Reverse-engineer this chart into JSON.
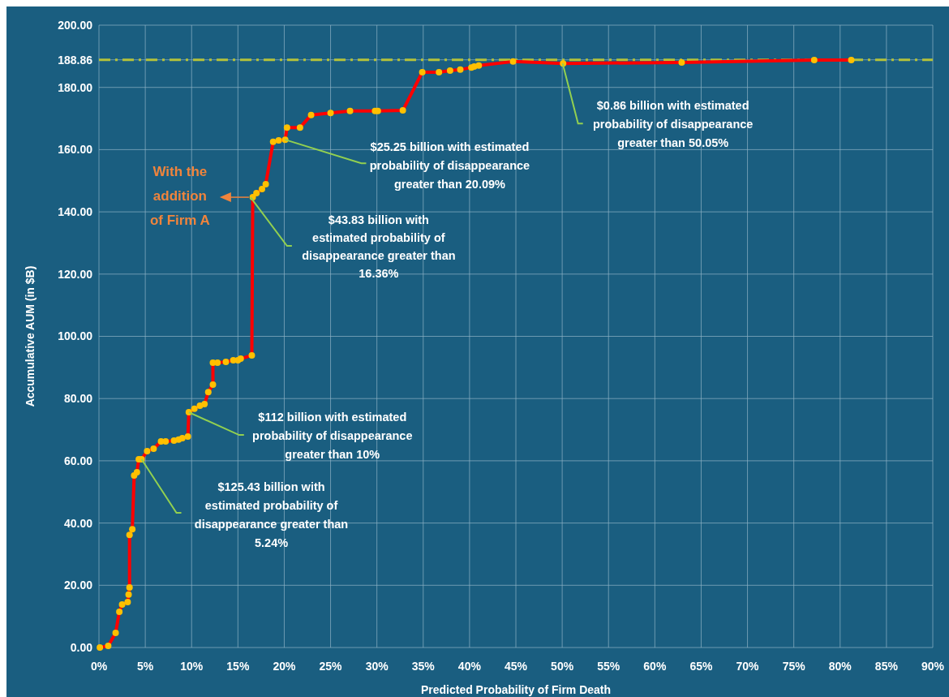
{
  "chart_data": {
    "type": "line",
    "xlabel": "Predicted Probability of Firm Death",
    "ylabel": "Accumulative AUM (in $B)",
    "xlim": [
      0,
      90
    ],
    "ylim": [
      0,
      200
    ],
    "xticks": [
      {
        "value": 0,
        "label": "0%"
      },
      {
        "value": 5,
        "label": "5%"
      },
      {
        "value": 10,
        "label": "10%"
      },
      {
        "value": 15,
        "label": "15%"
      },
      {
        "value": 20,
        "label": "20%"
      },
      {
        "value": 25,
        "label": "25%"
      },
      {
        "value": 30,
        "label": "30%"
      },
      {
        "value": 35,
        "label": "35%"
      },
      {
        "value": 40,
        "label": "40%"
      },
      {
        "value": 45,
        "label": "45%"
      },
      {
        "value": 50,
        "label": "50%"
      },
      {
        "value": 55,
        "label": "55%"
      },
      {
        "value": 60,
        "label": "60%"
      },
      {
        "value": 65,
        "label": "65%"
      },
      {
        "value": 70,
        "label": "70%"
      },
      {
        "value": 75,
        "label": "75%"
      },
      {
        "value": 80,
        "label": "80%"
      },
      {
        "value": 85,
        "label": "85%"
      },
      {
        "value": 90,
        "label": "90%"
      }
    ],
    "yticks": [
      {
        "value": 0,
        "label": "0.00"
      },
      {
        "value": 20,
        "label": "20.00"
      },
      {
        "value": 40,
        "label": "40.00"
      },
      {
        "value": 60,
        "label": "60.00"
      },
      {
        "value": 80,
        "label": "80.00"
      },
      {
        "value": 100,
        "label": "100.00"
      },
      {
        "value": 120,
        "label": "120.00"
      },
      {
        "value": 140,
        "label": "140.00"
      },
      {
        "value": 160,
        "label": "160.00"
      },
      {
        "value": 180,
        "label": "180.00"
      },
      {
        "value": 188.86,
        "label": "188.86"
      },
      {
        "value": 200,
        "label": "200.00"
      }
    ],
    "grid": true,
    "marker": "circle",
    "line_style": "solid",
    "series": [
      {
        "color": "#ff0000",
        "x": [
          0.1,
          1.0,
          1.8,
          2.2,
          2.5,
          3.1,
          3.2,
          3.3,
          3.3,
          3.6,
          3.8,
          4.1,
          4.3,
          4.6,
          5.2,
          5.9,
          6.7,
          7.2,
          8.1,
          8.6,
          9.0,
          9.6,
          9.7,
          10.3,
          10.9,
          11.4,
          11.8,
          12.3,
          12.3,
          12.8,
          13.7,
          14.5,
          15.0,
          15.3,
          16.5,
          16.6,
          17.0,
          17.6,
          18.0,
          18.8,
          19.4,
          20.1,
          20.3,
          21.7,
          22.9,
          25.0,
          27.1,
          29.8,
          30.1,
          32.8,
          34.9,
          36.7,
          37.9,
          39.0,
          40.2,
          40.5,
          41.0,
          44.7,
          50.1,
          62.9,
          77.2,
          81.2
        ],
        "values": [
          0,
          0.5,
          4.7,
          11.5,
          13.8,
          14.6,
          17,
          19.3,
          36.2,
          38,
          55.3,
          56.3,
          60.5,
          60.5,
          63.1,
          63.9,
          66.2,
          66.2,
          66.5,
          66.8,
          67.3,
          67.8,
          75.6,
          76.7,
          77.7,
          78.2,
          82.1,
          84.5,
          91.5,
          91.5,
          91.8,
          92.3,
          92.3,
          92.8,
          93.9,
          144.7,
          146,
          147.3,
          148.9,
          162.5,
          163,
          163.2,
          167.1,
          167.1,
          171.1,
          171.8,
          172.4,
          172.4,
          172.4,
          172.6,
          184.9,
          184.9,
          185.4,
          185.7,
          186.4,
          186.7,
          187,
          188.3,
          187.7,
          188,
          188.8,
          188.8
        ]
      }
    ],
    "ref_lines": [
      {
        "axis": "y",
        "value": 188.86,
        "color": "#b5c23a",
        "line_style": "dashed"
      }
    ],
    "annotations": [
      {
        "text": "With the\naddition\nof Firm A",
        "x": 16.36,
        "y": 144.7
      },
      {
        "text": "$43.83 billion with\nestimated probability of\ndisappearance greater than\n16.36%",
        "x": 16.36,
        "y": 144.7
      },
      {
        "text": "$25.25 billion with estimated\nprobability of disappearance\ngreater than 20.09%",
        "x": 20.09,
        "y": 163.2
      },
      {
        "text": "$112 billion with estimated\nprobability of disappearance\ngreater than 10%",
        "x": 9.7,
        "y": 75.6
      },
      {
        "text": "$125.43 billion with\nestimated probability of\ndisappearance greater than\n5.24%",
        "x": 4.6,
        "y": 60.5
      },
      {
        "text": "$0.86 billion with estimated\nprobability of disappearance\ngreater than 50.05%",
        "x": 50.05,
        "y": 187.7
      }
    ]
  }
}
